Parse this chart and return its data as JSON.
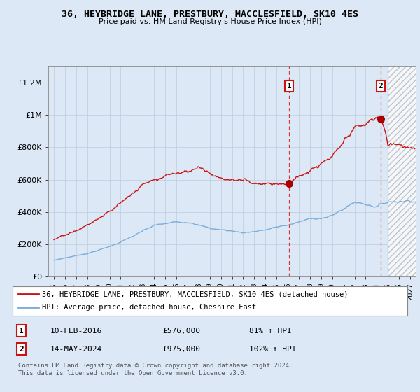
{
  "title": "36, HEYBRIDGE LANE, PRESTBURY, MACCLESFIELD, SK10 4ES",
  "subtitle": "Price paid vs. HM Land Registry's House Price Index (HPI)",
  "background_color": "#dce8f5",
  "plot_background": "#dce8f5",
  "legend_label_red": "36, HEYBRIDGE LANE, PRESTBURY, MACCLESFIELD, SK10 4ES (detached house)",
  "legend_label_blue": "HPI: Average price, detached house, Cheshire East",
  "annotation1_label": "1",
  "annotation1_date": "10-FEB-2016",
  "annotation1_price": "£576,000",
  "annotation1_hpi": "81% ↑ HPI",
  "annotation2_label": "2",
  "annotation2_date": "14-MAY-2024",
  "annotation2_price": "£975,000",
  "annotation2_hpi": "102% ↑ HPI",
  "copyright_text": "Contains HM Land Registry data © Crown copyright and database right 2024.\nThis data is licensed under the Open Government Licence v3.0.",
  "sale1_year": 2016.12,
  "sale1_value": 576000,
  "sale2_year": 2024.37,
  "sale2_value": 975000,
  "hatch_start": 2025.0,
  "ylim_max": 1300000,
  "yticks": [
    0,
    200000,
    400000,
    600000,
    800000,
    1000000,
    1200000
  ],
  "ytick_labels": [
    "£0",
    "£200K",
    "£400K",
    "£600K",
    "£800K",
    "£1M",
    "£1.2M"
  ],
  "xmin": 1994.5,
  "xmax": 2027.5,
  "xticks": [
    1995,
    1996,
    1997,
    1998,
    1999,
    2000,
    2001,
    2002,
    2003,
    2004,
    2005,
    2006,
    2007,
    2008,
    2009,
    2010,
    2011,
    2012,
    2013,
    2014,
    2015,
    2016,
    2017,
    2018,
    2019,
    2020,
    2021,
    2022,
    2023,
    2024,
    2025,
    2026,
    2027
  ]
}
